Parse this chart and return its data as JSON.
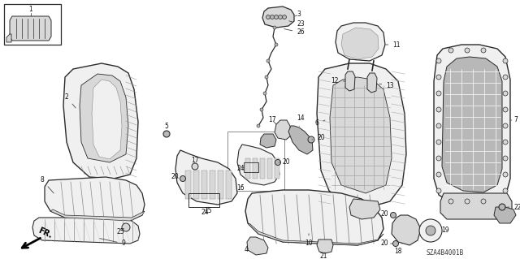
{
  "background_color": "#ffffff",
  "catalog_number": "SZA4B4001B",
  "line_color": "#2a2a2a",
  "fill_light": "#f0f0f0",
  "fill_mid": "#d8d8d8",
  "fill_dark": "#b8b8b8",
  "text_color": "#111111",
  "fig_width": 6.4,
  "fig_height": 3.19,
  "dpi": 100
}
